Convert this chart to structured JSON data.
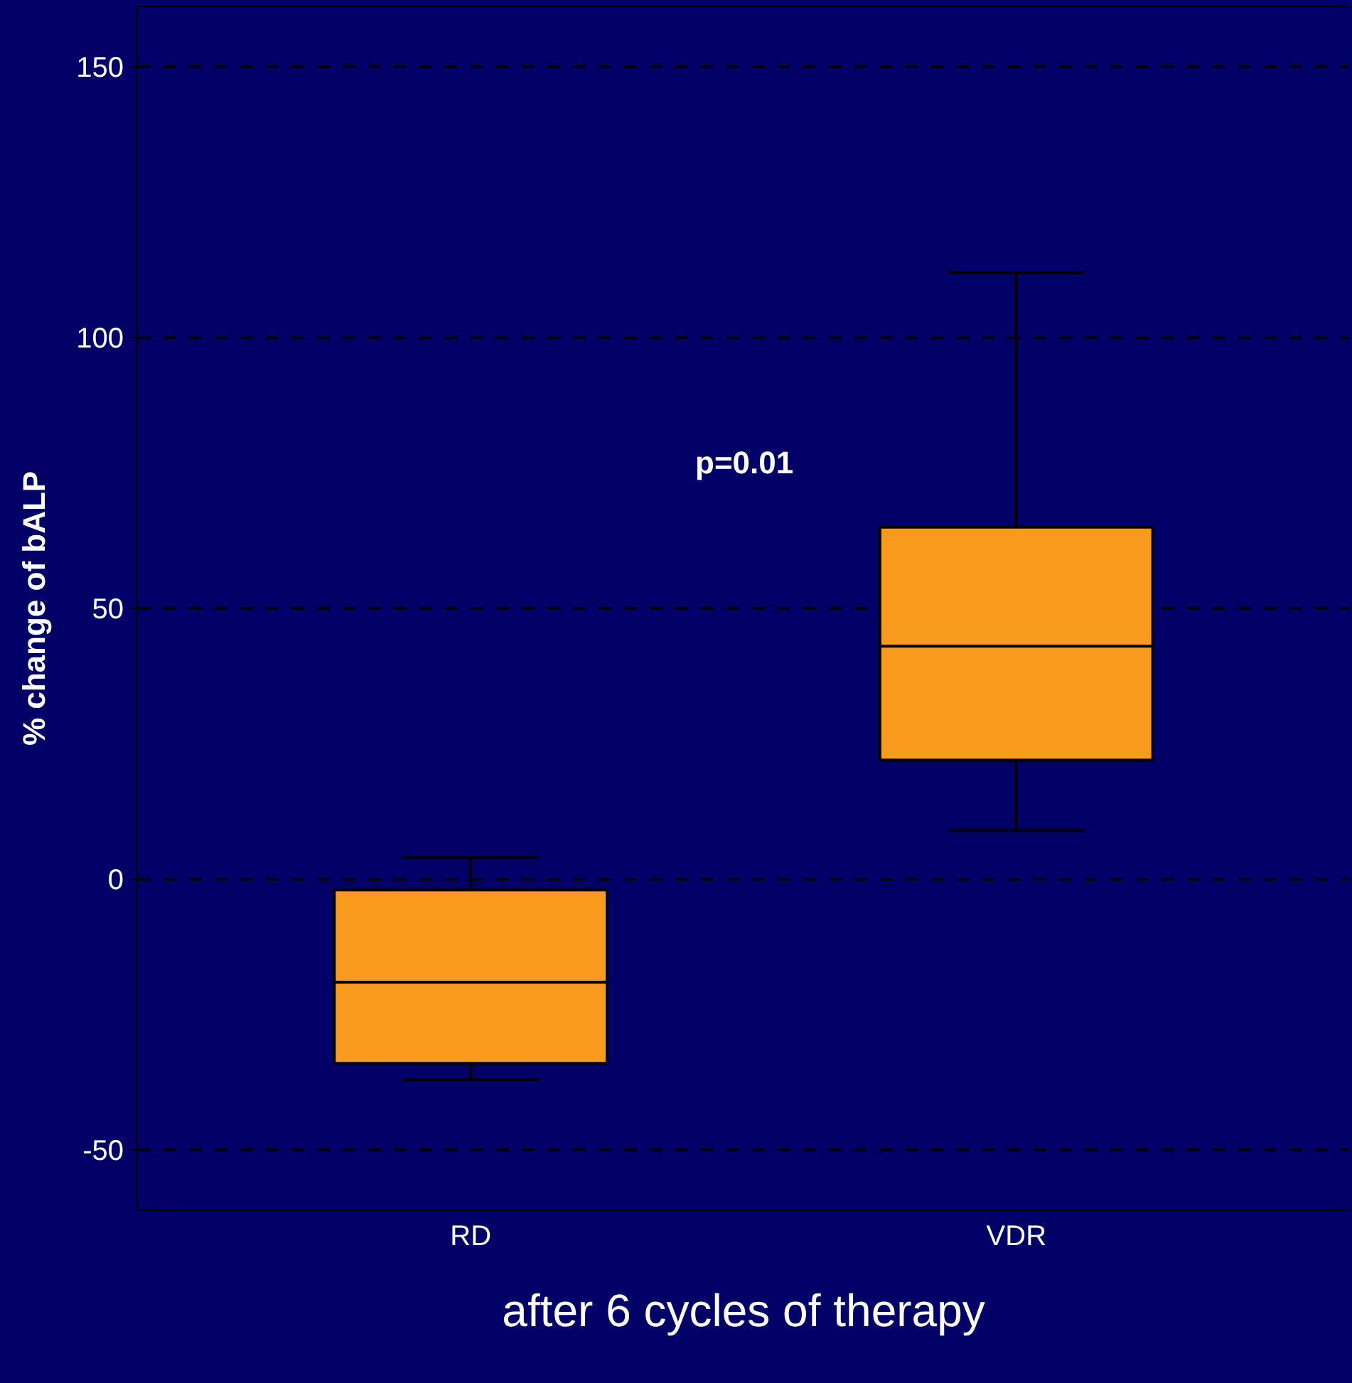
{
  "chart_data": {
    "type": "box",
    "xlabel": "after 6 cycles of therapy",
    "ylabel": "% change of bALP",
    "categories": [
      "RD",
      "VDR"
    ],
    "series": [
      {
        "color": "#f79a1e",
        "boxes": [
          {
            "low": -37,
            "q1": -34,
            "median": -19,
            "q3": -2,
            "high": 4
          },
          {
            "low": 9,
            "q1": 22,
            "median": 43,
            "q3": 65,
            "high": 112
          }
        ]
      }
    ],
    "ylim": [
      -61,
      161
    ],
    "yticks": [
      -50,
      0,
      50,
      100,
      150
    ],
    "grid": "y",
    "legend": false,
    "annotations": [
      "p=0.01"
    ]
  }
}
